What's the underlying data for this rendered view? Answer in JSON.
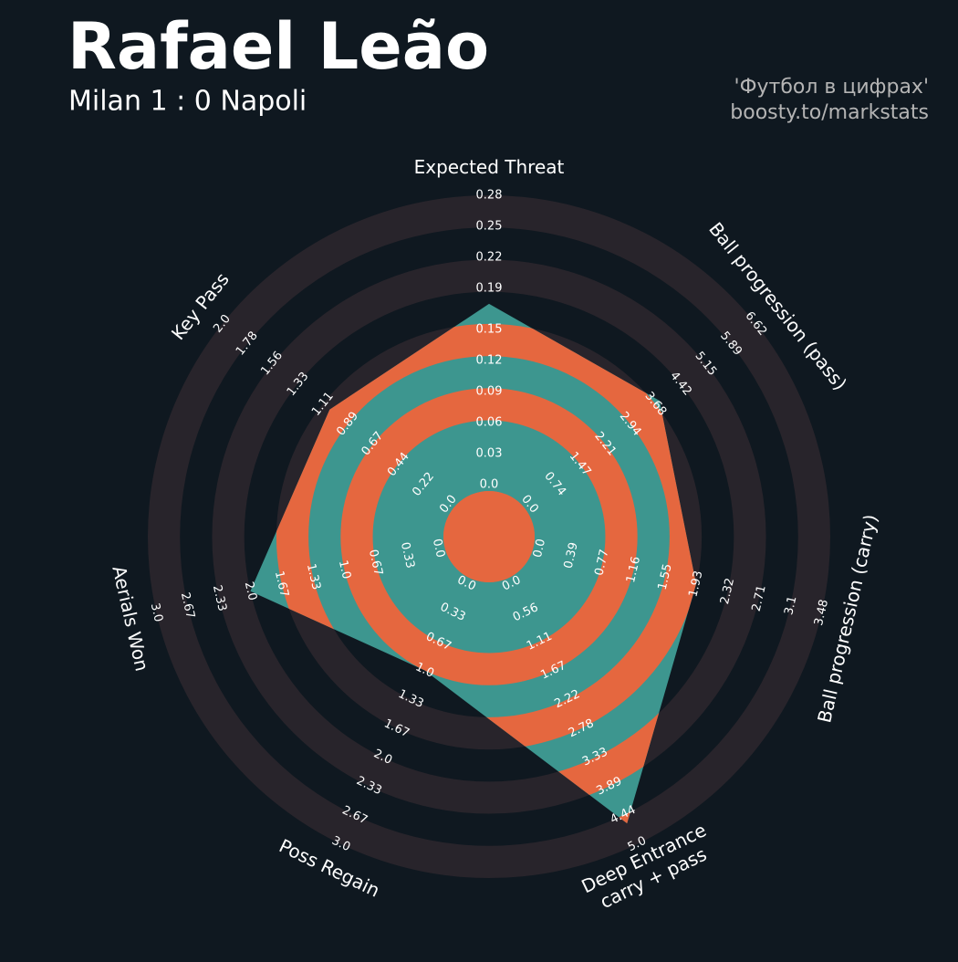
{
  "chart_data": {
    "type": "radar",
    "title": "Rafael Leão",
    "subtitle": "Milan 1 : 0 Napoli",
    "credits": [
      "'Футбол в цифрах'",
      "boosty.to/markstats"
    ],
    "categories": [
      [
        "Expected Threat"
      ],
      [
        "Ball progression (pass)"
      ],
      [
        "Ball progression (carry)"
      ],
      [
        "Deep Entrance",
        "carry + pass"
      ],
      [
        "Poss Regain"
      ],
      [
        "Aerials Won"
      ],
      [
        "Key Pass"
      ]
    ],
    "values": [
      0.175,
      3.8,
      1.93,
      4.6,
      1.0,
      2.0,
      1.05
    ],
    "ranges": [
      [
        0,
        0.28
      ],
      [
        0,
        6.62
      ],
      [
        0,
        3.48
      ],
      [
        0,
        5
      ],
      [
        0,
        3
      ],
      [
        0,
        3
      ],
      [
        0,
        2
      ]
    ],
    "ticks": [
      [
        {
          "value": 0,
          "label": "0.0"
        },
        0.03,
        0.06,
        0.09,
        0.12,
        0.15,
        0.19,
        0.22,
        0.25,
        0.28
      ],
      [
        {
          "value": 0,
          "label": "0.0"
        },
        0.74,
        1.47,
        2.21,
        2.94,
        3.68,
        4.42,
        5.15,
        5.89,
        6.62
      ],
      [
        {
          "value": 0,
          "label": "0.0"
        },
        0.39,
        0.77,
        1.16,
        1.55,
        1.93,
        2.32,
        2.71,
        3.1,
        3.48
      ],
      [
        {
          "value": 0,
          "label": "0.0"
        },
        0.56,
        1.11,
        1.67,
        2.22,
        2.78,
        3.33,
        3.89,
        4.44,
        {
          "value": 5,
          "label": "5.0"
        }
      ],
      [
        {
          "value": 0,
          "label": "0.0"
        },
        0.33,
        0.67,
        {
          "value": 1,
          "label": "1.0"
        },
        1.33,
        1.67,
        {
          "value": 2,
          "label": "2.0"
        },
        2.33,
        2.67,
        {
          "value": 3,
          "label": "3.0"
        }
      ],
      [
        {
          "value": 0,
          "label": "0.0"
        },
        0.33,
        0.67,
        {
          "value": 1,
          "label": "1.0"
        },
        1.33,
        1.67,
        {
          "value": 2,
          "label": "2.0"
        },
        2.33,
        2.67,
        {
          "value": 3,
          "label": "3.0"
        }
      ],
      [
        {
          "value": 0,
          "label": "0.0"
        },
        0.22,
        0.44,
        0.67,
        0.89,
        1.11,
        1.33,
        1.56,
        1.78,
        {
          "value": 2,
          "label": "2.0"
        }
      ]
    ],
    "color": "#3d968f",
    "ring_color": "#e5673f",
    "background_ring_color": "#28242b"
  }
}
